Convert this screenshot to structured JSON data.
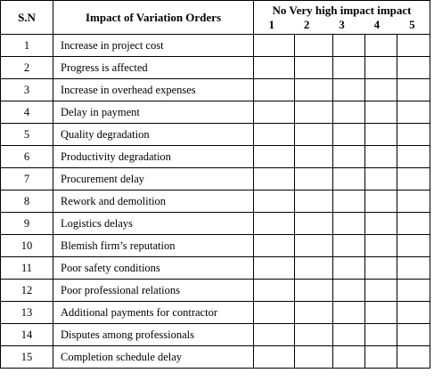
{
  "header": {
    "sn": "S.N",
    "impact": "Impact of Variation Orders",
    "scale_title": "No Very high impact impact",
    "scale": [
      "1",
      "2",
      "3",
      "4",
      "5"
    ]
  },
  "rows": [
    {
      "sn": "1",
      "impact": "Increase in project cost"
    },
    {
      "sn": "2",
      "impact": "Progress is affected"
    },
    {
      "sn": "3",
      "impact": "Increase in overhead expenses"
    },
    {
      "sn": "4",
      "impact": "Delay in payment"
    },
    {
      "sn": "5",
      "impact": "Quality degradation"
    },
    {
      "sn": "6",
      "impact": "Productivity degradation"
    },
    {
      "sn": "7",
      "impact": "Procurement delay"
    },
    {
      "sn": "8",
      "impact": "Rework and demolition"
    },
    {
      "sn": "9",
      "impact": "Logistics delays"
    },
    {
      "sn": "10",
      "impact": "Blemish firm’s reputation"
    },
    {
      "sn": "11",
      "impact": "Poor safety conditions"
    },
    {
      "sn": "12",
      "impact": "Poor professional relations"
    },
    {
      "sn": "13",
      "impact": "Additional payments for contractor"
    },
    {
      "sn": "14",
      "impact": "Disputes among professionals"
    },
    {
      "sn": "15",
      "impact": "Completion schedule delay"
    }
  ]
}
